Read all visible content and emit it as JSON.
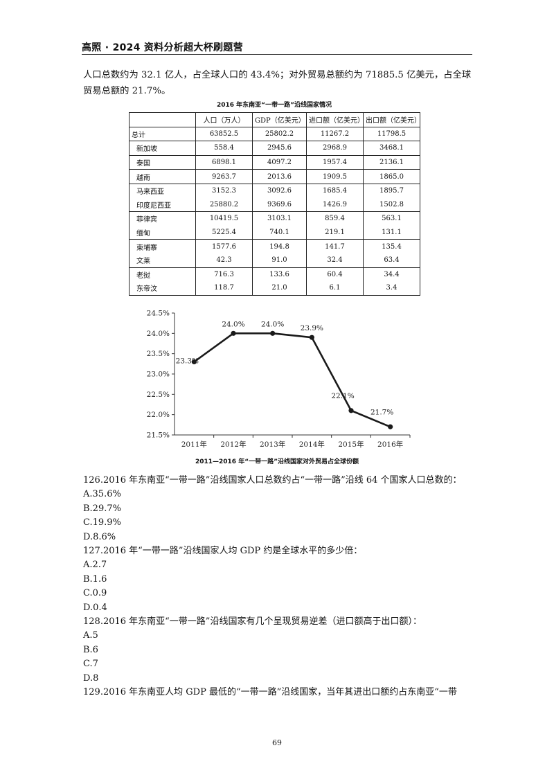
{
  "header": {
    "title": "高照 · 2024 资料分析超大杯刷题营"
  },
  "intro": {
    "text": "人口总数约为 32.1 亿人，占全球人口的 43.4%；对外贸易总额约为 71885.5 亿美元，占全球贸易总额的 21.7%。"
  },
  "table": {
    "title": "2016 年东南亚“一带一路”沿线国家情况",
    "headers": [
      "",
      "人口（万人）",
      "GDP（亿美元）",
      "进口额（亿美元）",
      "出口额（亿美元）"
    ],
    "rows": [
      [
        "总计",
        "63852.5",
        "25802.2",
        "11267.2",
        "11798.5"
      ],
      [
        "新加坡",
        "558.4",
        "2945.6",
        "2968.9",
        "3468.1"
      ],
      [
        "泰国",
        "6898.1",
        "4097.2",
        "1957.4",
        "2136.1"
      ],
      [
        "越南",
        "9263.7",
        "2013.6",
        "1909.5",
        "1865.0"
      ],
      [
        "马来西亚",
        "3152.3",
        "3092.6",
        "1685.4",
        "1895.7"
      ],
      [
        "印度尼西亚",
        "25880.2",
        "9369.6",
        "1426.9",
        "1502.8"
      ],
      [
        "菲律宾",
        "10419.5",
        "3103.1",
        "859.4",
        "563.1"
      ],
      [
        "缅甸",
        "5225.4",
        "740.1",
        "219.1",
        "131.1"
      ],
      [
        "柬埔寨",
        "1577.6",
        "194.8",
        "141.7",
        "135.4"
      ],
      [
        "文莱",
        "42.3",
        "91.0",
        "32.4",
        "63.4"
      ],
      [
        "老挝",
        "716.3",
        "133.6",
        "60.4",
        "34.4"
      ],
      [
        "东帝汶",
        "118.7",
        "21.0",
        "6.1",
        "3.4"
      ]
    ]
  },
  "chart_data": {
    "type": "line",
    "title": "2011—2016 年“一带一路”沿线国家对外贸易占全球份额",
    "categories": [
      "2011年",
      "2012年",
      "2013年",
      "2014年",
      "2015年",
      "2016年"
    ],
    "series": [
      {
        "values": [
          23.3,
          24.0,
          24.0,
          23.9,
          22.1,
          21.7
        ]
      }
    ],
    "data_labels": [
      "23.3%",
      "24.0%",
      "24.0%",
      "23.9%",
      "22.1%",
      "21.7%"
    ],
    "yticks": [
      "21.5%",
      "22.0%",
      "22.5%",
      "23.0%",
      "23.5%",
      "24.0%",
      "24.5%"
    ],
    "ylim": [
      21.5,
      24.5
    ],
    "xlabel": "",
    "ylabel": "",
    "grid": false,
    "line_color": "#1a1a1a"
  },
  "questions": [
    {
      "stem": "126.2016 年东南亚“一带一路”沿线国家人口总数约占“一带一路”沿线 64 个国家人口总数的：",
      "options": [
        "A.35.6%",
        "B.29.7%",
        "C.19.9%",
        "D.8.6%"
      ]
    },
    {
      "stem": "127.2016 年“一带一路”沿线国家人均 GDP 约是全球水平的多少倍：",
      "options": [
        "A.2.7",
        "B.1.6",
        "C.0.9",
        "D.0.4"
      ]
    },
    {
      "stem": "128.2016 年东南亚“一带一路”沿线国家有几个呈现贸易逆差（进口额高于出口额）：",
      "options": [
        "A.5",
        "B.6",
        "C.7",
        "D.8"
      ]
    },
    {
      "stem": "129.2016 年东南亚人均 GDP 最低的“一带一路”沿线国家，当年其进出口额约占东南亚“一带",
      "options": []
    }
  ],
  "page": {
    "number": "69"
  }
}
